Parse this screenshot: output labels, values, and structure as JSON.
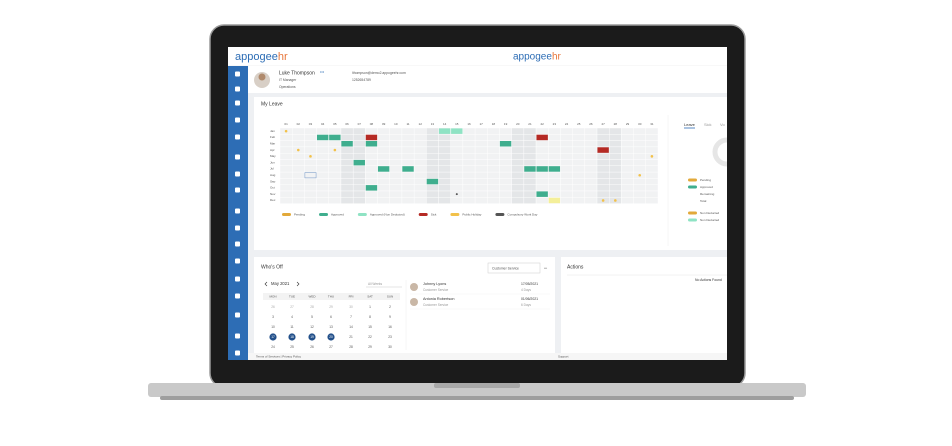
{
  "header": {
    "logo": {
      "brand": "appogee",
      "suffix": "hr"
    },
    "center_logo": {
      "brand": "appogee",
      "suffix": "hr"
    }
  },
  "profile": {
    "name": "Luke Thompson",
    "menu": "•••",
    "role": "IT Manager",
    "department": "Operations",
    "email": "lthompson@demo2.appogeehr.com",
    "phone": "1252654789"
  },
  "my_leave": {
    "title": "My Leave",
    "days": [
      "01",
      "02",
      "03",
      "04",
      "05",
      "06",
      "07",
      "08",
      "09",
      "10",
      "11",
      "12",
      "13",
      "14",
      "15",
      "16",
      "17",
      "18",
      "19",
      "20",
      "21",
      "22",
      "23",
      "24",
      "25",
      "26",
      "27",
      "28",
      "29",
      "30",
      "31"
    ],
    "months": [
      "Jan",
      "Feb",
      "Mar",
      "Apr",
      "May",
      "Jun",
      "Jul",
      "Aug",
      "Sep",
      "Oct",
      "Nov",
      "Dec"
    ],
    "entries": [
      {
        "month": 0,
        "day": 1,
        "legend": 4
      },
      {
        "month": 0,
        "day": 14,
        "legend": 2
      },
      {
        "month": 0,
        "day": 15,
        "legend": 2
      },
      {
        "month": 1,
        "day": 4,
        "legend": 1
      },
      {
        "month": 1,
        "day": 5,
        "legend": 1
      },
      {
        "month": 1,
        "day": 8,
        "legend": 3
      },
      {
        "month": 1,
        "day": 22,
        "legend": 3
      },
      {
        "month": 2,
        "day": 6,
        "legend": 1
      },
      {
        "month": 2,
        "day": 8,
        "legend": 1
      },
      {
        "month": 2,
        "day": 19,
        "legend": 1
      },
      {
        "month": 3,
        "day": 2,
        "legend": 4
      },
      {
        "month": 3,
        "day": 5,
        "legend": 4
      },
      {
        "month": 3,
        "day": 27,
        "legend": 3
      },
      {
        "month": 4,
        "day": 3,
        "legend": 4
      },
      {
        "month": 4,
        "day": 31,
        "legend": 4
      },
      {
        "month": 5,
        "day": 7,
        "legend": 1
      },
      {
        "month": 6,
        "day": 9,
        "legend": 1
      },
      {
        "month": 6,
        "day": 11,
        "legend": 1
      },
      {
        "month": 6,
        "day": 21,
        "legend": 1
      },
      {
        "month": 6,
        "day": 22,
        "legend": 1
      },
      {
        "month": 6,
        "day": 23,
        "legend": 1
      },
      {
        "month": 7,
        "day": 3,
        "legend": 0
      },
      {
        "month": 7,
        "day": 30,
        "legend": 4
      },
      {
        "month": 8,
        "day": 13,
        "legend": 1
      },
      {
        "month": 9,
        "day": 8,
        "legend": 1
      },
      {
        "month": 10,
        "day": 15,
        "legend": 5
      },
      {
        "month": 10,
        "day": 22,
        "legend": 1
      },
      {
        "month": 11,
        "day": 23,
        "legend": 0
      },
      {
        "month": 11,
        "day": 27,
        "legend": 4
      },
      {
        "month": 11,
        "day": 28,
        "legend": 4
      }
    ],
    "legend": [
      {
        "label": "Pending",
        "color": "#e2a93a"
      },
      {
        "label": "Approved",
        "color": "#3fae8e"
      },
      {
        "label": "Approved (Non Deducted)",
        "color": "#8fe3c4"
      },
      {
        "label": "Sick",
        "color": "#b52a24"
      },
      {
        "label": "Public Holiday",
        "color": "#f2c14a"
      },
      {
        "label": "Compulsory Work Day",
        "color": "#555555"
      }
    ]
  },
  "leave_summary": {
    "tabs": [
      "Leave",
      "Sick",
      "Vo"
    ],
    "legend": [
      {
        "label": "Pending",
        "color": "#e2a93a"
      },
      {
        "label": "Approved",
        "color": "#3fae8e"
      },
      {
        "label": "Remaining"
      },
      {
        "label": "Total"
      },
      {
        "label": "Non Deducted",
        "color": "#e2a93a"
      },
      {
        "label": "Non Deducted",
        "color": "#8fe3c4"
      }
    ]
  },
  "whos_off": {
    "title": "Who's Off",
    "filter": "Customer Service",
    "more": "•••",
    "month": "May 2021",
    "weeks": "All Weeks",
    "weekdays": [
      "MON",
      "TUE",
      "WED",
      "THU",
      "FRI",
      "SAT",
      "SUN"
    ],
    "dates": [
      [
        26,
        27,
        28,
        29,
        30,
        1,
        2
      ],
      [
        3,
        4,
        5,
        6,
        7,
        8,
        9
      ],
      [
        10,
        11,
        12,
        13,
        14,
        15,
        16
      ],
      [
        17,
        18,
        19,
        20,
        21,
        22,
        23
      ],
      [
        24,
        25,
        26,
        27,
        28,
        29,
        30
      ]
    ],
    "selected": [
      17,
      18,
      19,
      20
    ],
    "people": [
      {
        "name": "Johnny Lyons",
        "team": "Customer Service",
        "date": "17/05/2021",
        "length": "4 Days"
      },
      {
        "name": "Antonia Robertson",
        "team": "Customer Service",
        "date": "01/06/2021",
        "length": "6 Days"
      }
    ]
  },
  "actions": {
    "title": "Actions",
    "empty": "No Actions Found"
  },
  "footer": {
    "links": "Terms of Services | Privacy Policy",
    "support": "Support"
  }
}
